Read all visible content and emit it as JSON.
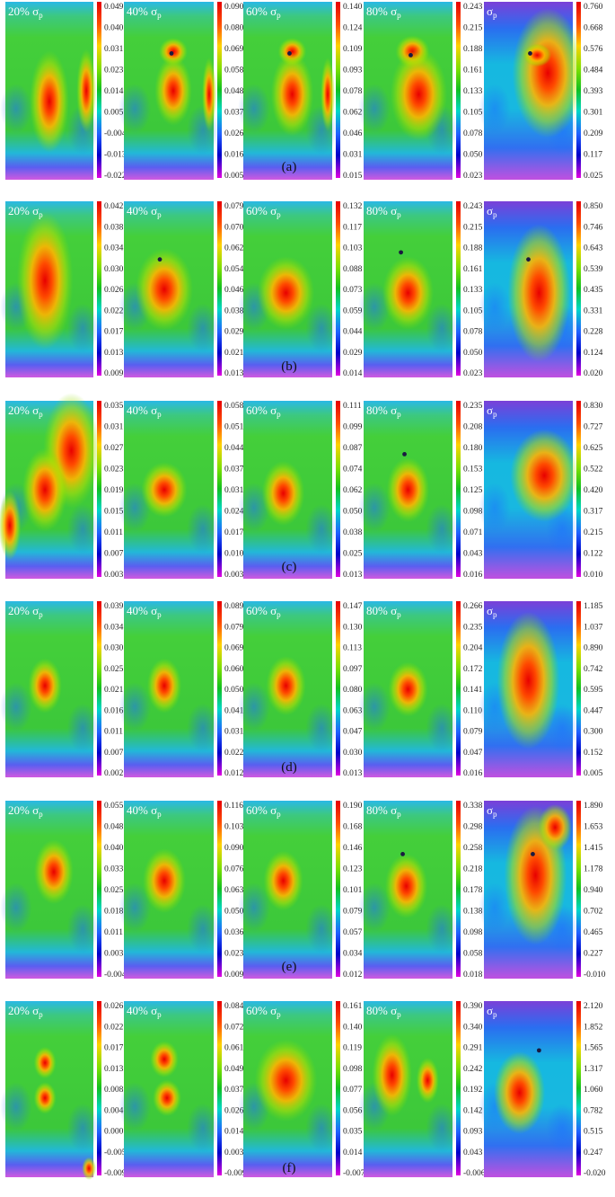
{
  "chart_data": {
    "type": "heatmap",
    "panel_title_unit": "σ",
    "panel_title_sub": "p",
    "rows": [
      {
        "label": "(a)",
        "panels": [
          {
            "title": "20%",
            "ticks": [
              "0.049",
              "0.040",
              "0.031",
              "0.023",
              "0.014",
              "0.005",
              "-0.004",
              "-0.013",
              "-0.022"
            ],
            "hotspots": [
              [
                0.5,
                0.56,
                0.14,
                0.22
              ],
              [
                0.92,
                0.5,
                0.07,
                0.18
              ]
            ],
            "dot": null
          },
          {
            "title": "40%",
            "ticks": [
              "0.090",
              "0.080",
              "0.069",
              "0.058",
              "0.048",
              "0.037",
              "0.026",
              "0.016",
              "0.005"
            ],
            "hotspots": [
              [
                0.55,
                0.28,
                0.1,
                0.06
              ],
              [
                0.55,
                0.5,
                0.13,
                0.15
              ],
              [
                0.95,
                0.52,
                0.05,
                0.16
              ]
            ],
            "dot": [
              0.53,
              0.29
            ]
          },
          {
            "title": "60%",
            "ticks": [
              "0.140",
              "0.124",
              "0.109",
              "0.093",
              "0.078",
              "0.062",
              "0.046",
              "0.031",
              "0.015"
            ],
            "hotspots": [
              [
                0.55,
                0.28,
                0.1,
                0.06
              ],
              [
                0.55,
                0.52,
                0.15,
                0.18
              ],
              [
                0.95,
                0.52,
                0.05,
                0.16
              ]
            ],
            "dot": [
              0.52,
              0.29
            ]
          },
          {
            "title": "80%",
            "ticks": [
              "0.243",
              "0.215",
              "0.188",
              "0.161",
              "0.133",
              "0.105",
              "0.078",
              "0.050",
              "0.023"
            ],
            "hotspots": [
              [
                0.55,
                0.28,
                0.12,
                0.07
              ],
              [
                0.62,
                0.52,
                0.2,
                0.2
              ]
            ],
            "dot": [
              0.53,
              0.3
            ]
          },
          {
            "title": "",
            "ticks": [
              "0.760",
              "0.668",
              "0.576",
              "0.484",
              "0.393",
              "0.301",
              "0.209",
              "0.117",
              "0.025"
            ],
            "hotspots": [
              [
                0.72,
                0.4,
                0.25,
                0.28
              ],
              [
                0.6,
                0.3,
                0.1,
                0.05
              ]
            ],
            "dot": [
              0.52,
              0.29
            ]
          }
        ]
      },
      {
        "label": "(b)",
        "panels": [
          {
            "title": "20%",
            "ticks": [
              "0.042",
              "0.038",
              "0.034",
              "0.030",
              "0.026",
              "0.022",
              "0.017",
              "0.013",
              "0.009"
            ],
            "hotspots": [
              [
                0.45,
                0.45,
                0.2,
                0.3
              ]
            ],
            "dot": null
          },
          {
            "title": "40%",
            "ticks": [
              "0.079",
              "0.070",
              "0.062",
              "0.054",
              "0.046",
              "0.038",
              "0.029",
              "0.021",
              "0.013"
            ],
            "hotspots": [
              [
                0.45,
                0.5,
                0.2,
                0.18
              ]
            ],
            "dot": [
              0.4,
              0.33
            ]
          },
          {
            "title": "60%",
            "ticks": [
              "0.132",
              "0.117",
              "0.103",
              "0.088",
              "0.073",
              "0.059",
              "0.044",
              "0.029",
              "0.014"
            ],
            "hotspots": [
              [
                0.48,
                0.52,
                0.2,
                0.16
              ]
            ],
            "dot": null
          },
          {
            "title": "80%",
            "ticks": [
              "0.243",
              "0.215",
              "0.188",
              "0.161",
              "0.133",
              "0.105",
              "0.078",
              "0.050",
              "0.023"
            ],
            "hotspots": [
              [
                0.5,
                0.52,
                0.18,
                0.16
              ]
            ],
            "dot": [
              0.42,
              0.29
            ]
          },
          {
            "title": "",
            "ticks": [
              "0.850",
              "0.746",
              "0.643",
              "0.539",
              "0.435",
              "0.331",
              "0.228",
              "0.124",
              "0.020"
            ],
            "hotspots": [
              [
                0.62,
                0.52,
                0.22,
                0.3
              ]
            ],
            "dot": [
              0.5,
              0.33
            ]
          }
        ]
      },
      {
        "label": "(c)",
        "panels": [
          {
            "title": "20%",
            "ticks": [
              "0.035",
              "0.031",
              "0.027",
              "0.023",
              "0.019",
              "0.015",
              "0.011",
              "0.007",
              "0.003"
            ],
            "hotspots": [
              [
                0.75,
                0.28,
                0.2,
                0.25
              ],
              [
                0.45,
                0.5,
                0.16,
                0.18
              ],
              [
                0.05,
                0.7,
                0.08,
                0.15
              ]
            ],
            "dot": null
          },
          {
            "title": "40%",
            "ticks": [
              "0.058",
              "0.051",
              "0.044",
              "0.037",
              "0.031",
              "0.024",
              "0.017",
              "0.010",
              "0.003"
            ],
            "hotspots": [
              [
                0.45,
                0.5,
                0.16,
                0.12
              ]
            ],
            "dot": null
          },
          {
            "title": "60%",
            "ticks": [
              "0.111",
              "0.099",
              "0.087",
              "0.074",
              "0.062",
              "0.050",
              "0.038",
              "0.025",
              "0.013"
            ],
            "hotspots": [
              [
                0.45,
                0.52,
                0.15,
                0.14
              ]
            ],
            "dot": null
          },
          {
            "title": "80%",
            "ticks": [
              "0.235",
              "0.208",
              "0.180",
              "0.153",
              "0.125",
              "0.098",
              "0.071",
              "0.043",
              "0.016"
            ],
            "hotspots": [
              [
                0.5,
                0.5,
                0.15,
                0.14
              ]
            ],
            "dot": [
              0.46,
              0.3
            ]
          },
          {
            "title": "",
            "ticks": [
              "0.830",
              "0.727",
              "0.625",
              "0.522",
              "0.420",
              "0.317",
              "0.215",
              "0.122",
              "0.010"
            ],
            "hotspots": [
              [
                0.68,
                0.42,
                0.24,
                0.2
              ]
            ],
            "dot": null
          }
        ]
      },
      {
        "label": "(d)",
        "panels": [
          {
            "title": "20%",
            "ticks": [
              "0.039",
              "0.034",
              "0.030",
              "0.025",
              "0.021",
              "0.016",
              "0.011",
              "0.007",
              "0.002"
            ],
            "hotspots": [
              [
                0.45,
                0.48,
                0.12,
                0.12
              ]
            ],
            "dot": null
          },
          {
            "title": "40%",
            "ticks": [
              "0.089",
              "0.079",
              "0.069",
              "0.060",
              "0.050",
              "0.041",
              "0.031",
              "0.022",
              "0.012"
            ],
            "hotspots": [
              [
                0.45,
                0.48,
                0.12,
                0.12
              ]
            ],
            "dot": null
          },
          {
            "title": "60%",
            "ticks": [
              "0.147",
              "0.130",
              "0.113",
              "0.097",
              "0.080",
              "0.063",
              "0.047",
              "0.030",
              "0.013"
            ],
            "hotspots": [
              [
                0.48,
                0.48,
                0.14,
                0.13
              ]
            ],
            "dot": null
          },
          {
            "title": "80%",
            "ticks": [
              "0.266",
              "0.235",
              "0.204",
              "0.172",
              "0.141",
              "0.110",
              "0.079",
              "0.047",
              "0.016"
            ],
            "hotspots": [
              [
                0.5,
                0.5,
                0.14,
                0.12
              ]
            ],
            "dot": null
          },
          {
            "title": "",
            "ticks": [
              "1.185",
              "1.037",
              "0.890",
              "0.742",
              "0.595",
              "0.447",
              "0.300",
              "0.152",
              "0.005"
            ],
            "hotspots": [
              [
                0.5,
                0.45,
                0.22,
                0.3
              ]
            ],
            "dot": null
          }
        ]
      },
      {
        "label": "(e)",
        "panels": [
          {
            "title": "20%",
            "ticks": [
              "0.055",
              "0.048",
              "0.040",
              "0.033",
              "0.025",
              "0.018",
              "0.011",
              "0.003",
              "-0.004"
            ],
            "hotspots": [
              [
                0.55,
                0.4,
                0.14,
                0.14
              ]
            ],
            "dot": null
          },
          {
            "title": "40%",
            "ticks": [
              "0.116",
              "0.103",
              "0.090",
              "0.076",
              "0.063",
              "0.050",
              "0.036",
              "0.023",
              "0.009"
            ],
            "hotspots": [
              [
                0.45,
                0.45,
                0.15,
                0.14
              ]
            ],
            "dot": null
          },
          {
            "title": "60%",
            "ticks": [
              "0.190",
              "0.168",
              "0.146",
              "0.123",
              "0.101",
              "0.079",
              "0.057",
              "0.034",
              "0.012"
            ],
            "hotspots": [
              [
                0.45,
                0.45,
                0.14,
                0.13
              ]
            ],
            "dot": null
          },
          {
            "title": "80%",
            "ticks": [
              "0.338",
              "0.298",
              "0.258",
              "0.218",
              "0.178",
              "0.138",
              "0.098",
              "0.058",
              "0.018"
            ],
            "hotspots": [
              [
                0.48,
                0.48,
                0.15,
                0.14
              ]
            ],
            "dot": [
              0.44,
              0.3
            ]
          },
          {
            "title": "",
            "ticks": [
              "1.890",
              "1.653",
              "1.415",
              "1.178",
              "0.940",
              "0.702",
              "0.465",
              "0.227",
              "-0.010"
            ],
            "hotspots": [
              [
                0.58,
                0.42,
                0.22,
                0.3
              ],
              [
                0.8,
                0.15,
                0.12,
                0.1
              ]
            ],
            "dot": [
              0.55,
              0.3
            ]
          }
        ]
      },
      {
        "label": "(f)",
        "panels": [
          {
            "title": "20%",
            "ticks": [
              "0.026",
              "0.022",
              "0.017",
              "0.013",
              "0.008",
              "0.004",
              "0.000",
              "-0.005",
              "-0.009"
            ],
            "hotspots": [
              [
                0.45,
                0.35,
                0.08,
                0.07
              ],
              [
                0.45,
                0.55,
                0.08,
                0.07
              ],
              [
                0.95,
                0.95,
                0.05,
                0.05
              ]
            ],
            "dot": null
          },
          {
            "title": "40%",
            "ticks": [
              "0.084",
              "0.072",
              "0.061",
              "0.049",
              "0.037",
              "0.026",
              "0.014",
              "0.003",
              "-0.009"
            ],
            "hotspots": [
              [
                0.45,
                0.33,
                0.1,
                0.08
              ],
              [
                0.48,
                0.55,
                0.1,
                0.08
              ]
            ],
            "dot": null
          },
          {
            "title": "60%",
            "ticks": [
              "0.161",
              "0.140",
              "0.119",
              "0.098",
              "0.077",
              "0.056",
              "0.035",
              "0.014",
              "-0.007"
            ],
            "hotspots": [
              [
                0.48,
                0.45,
                0.22,
                0.18
              ]
            ],
            "dot": null
          },
          {
            "title": "80%",
            "ticks": [
              "0.390",
              "0.340",
              "0.291",
              "0.242",
              "0.192",
              "0.142",
              "0.093",
              "0.043",
              "-0.006"
            ],
            "hotspots": [
              [
                0.32,
                0.42,
                0.14,
                0.18
              ],
              [
                0.72,
                0.45,
                0.08,
                0.1
              ]
            ],
            "dot": null
          },
          {
            "title": "",
            "ticks": [
              "2.120",
              "1.852",
              "1.565",
              "1.317",
              "1.060",
              "0.782",
              "0.515",
              "0.247",
              "-0.020"
            ],
            "hotspots": [
              [
                0.4,
                0.52,
                0.18,
                0.18
              ]
            ],
            "dot": [
              0.62,
              0.28
            ]
          }
        ]
      }
    ]
  }
}
